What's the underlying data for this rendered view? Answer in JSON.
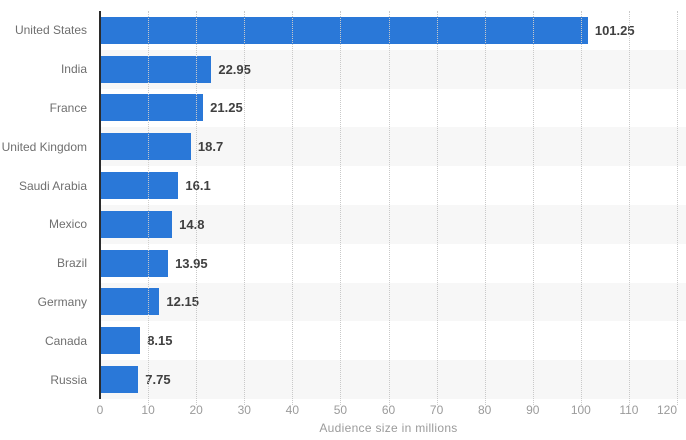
{
  "chart_data": {
    "type": "bar",
    "orientation": "horizontal",
    "xlabel": "Audience size in millions",
    "categories": [
      "United States",
      "India",
      "France",
      "United Kingdom",
      "Saudi Arabia",
      "Mexico",
      "Brazil",
      "Germany",
      "Canada",
      "Russia"
    ],
    "values": [
      101.25,
      22.95,
      21.25,
      18.7,
      16.1,
      14.8,
      13.95,
      12.15,
      8.15,
      7.75
    ],
    "xticks": [
      0,
      10,
      20,
      30,
      40,
      50,
      60,
      70,
      80,
      90,
      100,
      110,
      120
    ],
    "xlim": [
      0,
      120
    ],
    "grid": "vertical-dotted",
    "legend_position": "none",
    "row_striping": "alternate",
    "colors": {
      "bar": "#2a78d8",
      "row_stripe": "#f7f7f7",
      "gridline": "#c9c9c9",
      "axis_line": "#2b2b2b",
      "category_label": "#6f6f6f",
      "value_label": "#404040",
      "tick_label": "#9b9b9b",
      "axis_title": "#9b9b9b",
      "background": "#ffffff"
    }
  }
}
